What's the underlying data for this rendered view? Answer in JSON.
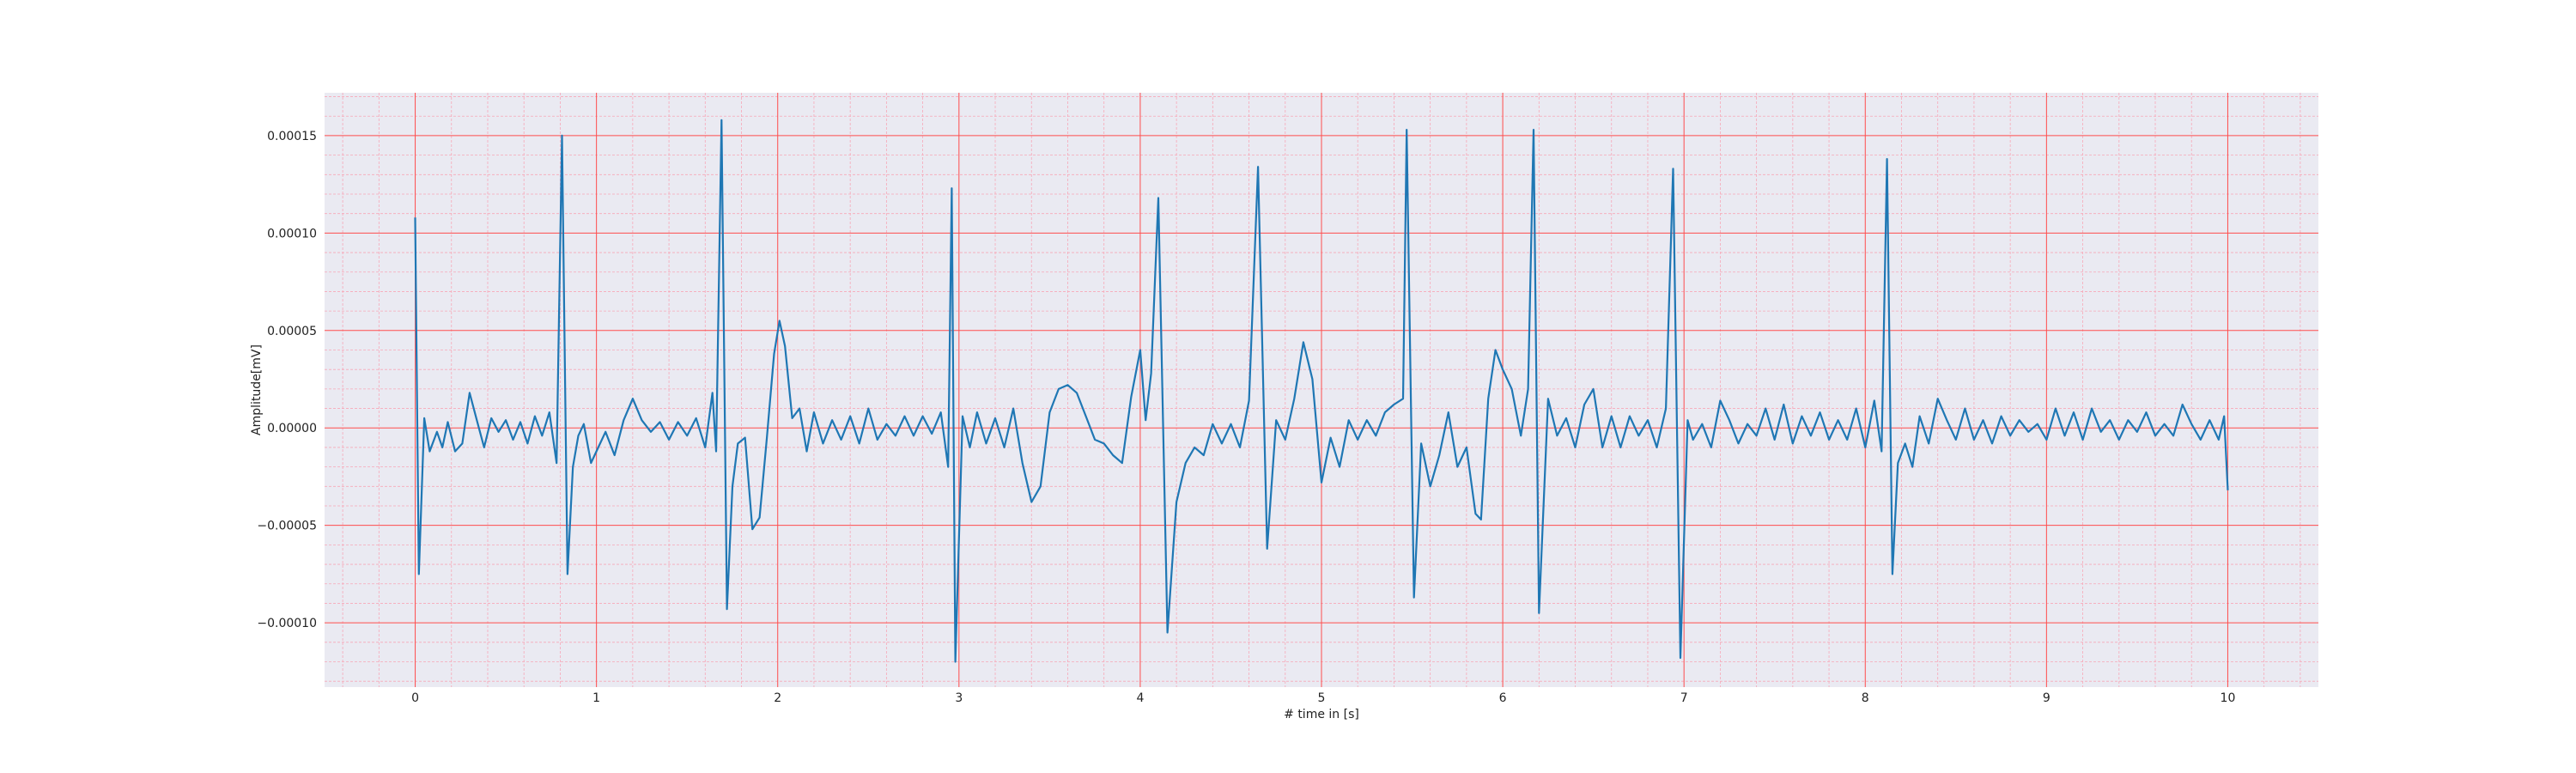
{
  "chart_data": {
    "type": "line",
    "title": "",
    "xlabel": "# time in [s]",
    "ylabel": "Amplitude[mV]",
    "xlim": [
      -0.5,
      10.5
    ],
    "ylim": [
      -0.000133,
      0.000172
    ],
    "x_ticks": [
      0,
      1,
      2,
      3,
      4,
      5,
      6,
      7,
      8,
      9,
      10
    ],
    "x_tick_labels": [
      "0",
      "1",
      "2",
      "3",
      "4",
      "5",
      "6",
      "7",
      "8",
      "9",
      "10"
    ],
    "y_ticks": [
      -0.0001,
      -5e-05,
      0,
      5e-05,
      0.0001,
      0.00015
    ],
    "y_tick_labels": [
      "−0.00010",
      "−0.00005",
      "0.00000",
      "0.00005",
      "0.00010",
      "0.00015"
    ],
    "grid": true,
    "minor_grid": true,
    "colors": {
      "background": "#eaeaf2",
      "major_grid": "#ff4d4d",
      "minor_grid": "#f7a8b8",
      "line": "#1f77b4"
    },
    "series": [
      {
        "points": [
          [
            0.0,
            0.000108
          ],
          [
            0.02,
            -7.5e-05
          ],
          [
            0.05,
            5e-06
          ],
          [
            0.08,
            -1.2e-05
          ],
          [
            0.12,
            -2e-06
          ],
          [
            0.15,
            -1e-05
          ],
          [
            0.18,
            3e-06
          ],
          [
            0.22,
            -1.2e-05
          ],
          [
            0.26,
            -8e-06
          ],
          [
            0.3,
            1.8e-05
          ],
          [
            0.34,
            4e-06
          ],
          [
            0.38,
            -1e-05
          ],
          [
            0.42,
            5e-06
          ],
          [
            0.46,
            -2e-06
          ],
          [
            0.5,
            4e-06
          ],
          [
            0.54,
            -6e-06
          ],
          [
            0.58,
            3e-06
          ],
          [
            0.62,
            -8e-06
          ],
          [
            0.66,
            6e-06
          ],
          [
            0.7,
            -4e-06
          ],
          [
            0.74,
            8e-06
          ],
          [
            0.78,
            -1.8e-05
          ],
          [
            0.81,
            0.00015
          ],
          [
            0.84,
            -7.5e-05
          ],
          [
            0.87,
            -2e-05
          ],
          [
            0.9,
            -4e-06
          ],
          [
            0.93,
            2e-06
          ],
          [
            0.97,
            -1.8e-05
          ],
          [
            1.0,
            -1.2e-05
          ],
          [
            1.05,
            -2e-06
          ],
          [
            1.1,
            -1.4e-05
          ],
          [
            1.15,
            4e-06
          ],
          [
            1.2,
            1.5e-05
          ],
          [
            1.25,
            4e-06
          ],
          [
            1.3,
            -2e-06
          ],
          [
            1.35,
            3e-06
          ],
          [
            1.4,
            -6e-06
          ],
          [
            1.45,
            3e-06
          ],
          [
            1.5,
            -4e-06
          ],
          [
            1.55,
            5e-06
          ],
          [
            1.6,
            -1e-05
          ],
          [
            1.64,
            1.8e-05
          ],
          [
            1.66,
            -1.2e-05
          ],
          [
            1.69,
            0.000158
          ],
          [
            1.72,
            -9.3e-05
          ],
          [
            1.75,
            -3e-05
          ],
          [
            1.78,
            -8e-06
          ],
          [
            1.82,
            -5e-06
          ],
          [
            1.86,
            -5.2e-05
          ],
          [
            1.9,
            -4.6e-05
          ],
          [
            1.94,
            -5e-06
          ],
          [
            1.98,
            3.8e-05
          ],
          [
            2.01,
            5.5e-05
          ],
          [
            2.04,
            4.2e-05
          ],
          [
            2.08,
            5e-06
          ],
          [
            2.12,
            1e-05
          ],
          [
            2.16,
            -1.2e-05
          ],
          [
            2.2,
            8e-06
          ],
          [
            2.25,
            -8e-06
          ],
          [
            2.3,
            4e-06
          ],
          [
            2.35,
            -6e-06
          ],
          [
            2.4,
            6e-06
          ],
          [
            2.45,
            -8e-06
          ],
          [
            2.5,
            1e-05
          ],
          [
            2.55,
            -6e-06
          ],
          [
            2.6,
            2e-06
          ],
          [
            2.65,
            -4e-06
          ],
          [
            2.7,
            6e-06
          ],
          [
            2.75,
            -4e-06
          ],
          [
            2.8,
            6e-06
          ],
          [
            2.85,
            -3e-06
          ],
          [
            2.9,
            8e-06
          ],
          [
            2.94,
            -2e-05
          ],
          [
            2.96,
            0.000123
          ],
          [
            2.98,
            -0.00012
          ],
          [
            3.02,
            6e-06
          ],
          [
            3.06,
            -1e-05
          ],
          [
            3.1,
            8e-06
          ],
          [
            3.15,
            -8e-06
          ],
          [
            3.2,
            5e-06
          ],
          [
            3.25,
            -1e-05
          ],
          [
            3.3,
            1e-05
          ],
          [
            3.35,
            -1.8e-05
          ],
          [
            3.4,
            -3.8e-05
          ],
          [
            3.45,
            -3e-05
          ],
          [
            3.5,
            8e-06
          ],
          [
            3.55,
            2e-05
          ],
          [
            3.6,
            2.2e-05
          ],
          [
            3.65,
            1.8e-05
          ],
          [
            3.7,
            6e-06
          ],
          [
            3.75,
            -6e-06
          ],
          [
            3.8,
            -8e-06
          ],
          [
            3.85,
            -1.4e-05
          ],
          [
            3.9,
            -1.8e-05
          ],
          [
            3.95,
            1.6e-05
          ],
          [
            4.0,
            4e-05
          ],
          [
            4.03,
            4e-06
          ],
          [
            4.06,
            2.8e-05
          ],
          [
            4.1,
            0.000118
          ],
          [
            4.15,
            -0.000105
          ],
          [
            4.2,
            -3.8e-05
          ],
          [
            4.25,
            -1.8e-05
          ],
          [
            4.3,
            -1e-05
          ],
          [
            4.35,
            -1.4e-05
          ],
          [
            4.4,
            2e-06
          ],
          [
            4.45,
            -8e-06
          ],
          [
            4.5,
            2e-06
          ],
          [
            4.55,
            -1e-05
          ],
          [
            4.6,
            1.4e-05
          ],
          [
            4.65,
            0.000134
          ],
          [
            4.7,
            -6.2e-05
          ],
          [
            4.75,
            4e-06
          ],
          [
            4.8,
            -6e-06
          ],
          [
            4.85,
            1.5e-05
          ],
          [
            4.9,
            4.4e-05
          ],
          [
            4.95,
            2.5e-05
          ],
          [
            5.0,
            -2.8e-05
          ],
          [
            5.05,
            -5e-06
          ],
          [
            5.1,
            -2e-05
          ],
          [
            5.15,
            4e-06
          ],
          [
            5.2,
            -6e-06
          ],
          [
            5.25,
            4e-06
          ],
          [
            5.3,
            -4e-06
          ],
          [
            5.35,
            8e-06
          ],
          [
            5.4,
            1.2e-05
          ],
          [
            5.45,
            1.5e-05
          ],
          [
            5.47,
            0.000153
          ],
          [
            5.51,
            -8.7e-05
          ],
          [
            5.55,
            -8e-06
          ],
          [
            5.6,
            -3e-05
          ],
          [
            5.65,
            -1.4e-05
          ],
          [
            5.7,
            8e-06
          ],
          [
            5.75,
            -2e-05
          ],
          [
            5.8,
            -1e-05
          ],
          [
            5.85,
            -4.4e-05
          ],
          [
            5.88,
            -4.7e-05
          ],
          [
            5.92,
            1.5e-05
          ],
          [
            5.96,
            4e-05
          ],
          [
            6.0,
            3e-05
          ],
          [
            6.05,
            2e-05
          ],
          [
            6.1,
            -4e-06
          ],
          [
            6.14,
            2e-05
          ],
          [
            6.17,
            0.000153
          ],
          [
            6.2,
            -9.5e-05
          ],
          [
            6.25,
            1.5e-05
          ],
          [
            6.3,
            -4e-06
          ],
          [
            6.35,
            5e-06
          ],
          [
            6.4,
            -1e-05
          ],
          [
            6.45,
            1.2e-05
          ],
          [
            6.5,
            2e-05
          ],
          [
            6.55,
            -1e-05
          ],
          [
            6.6,
            6e-06
          ],
          [
            6.65,
            -1e-05
          ],
          [
            6.7,
            6e-06
          ],
          [
            6.75,
            -4e-06
          ],
          [
            6.8,
            4e-06
          ],
          [
            6.85,
            -1e-05
          ],
          [
            6.9,
            1e-05
          ],
          [
            6.94,
            0.000133
          ],
          [
            6.98,
            -0.000118
          ],
          [
            7.02,
            4e-06
          ],
          [
            7.05,
            -6e-06
          ],
          [
            7.1,
            2e-06
          ],
          [
            7.15,
            -1e-05
          ],
          [
            7.2,
            1.4e-05
          ],
          [
            7.25,
            4e-06
          ],
          [
            7.3,
            -8e-06
          ],
          [
            7.35,
            2e-06
          ],
          [
            7.4,
            -4e-06
          ],
          [
            7.45,
            1e-05
          ],
          [
            7.5,
            -6e-06
          ],
          [
            7.55,
            1.2e-05
          ],
          [
            7.6,
            -8e-06
          ],
          [
            7.65,
            6e-06
          ],
          [
            7.7,
            -4e-06
          ],
          [
            7.75,
            8e-06
          ],
          [
            7.8,
            -6e-06
          ],
          [
            7.85,
            4e-06
          ],
          [
            7.9,
            -6e-06
          ],
          [
            7.95,
            1e-05
          ],
          [
            8.0,
            -1e-05
          ],
          [
            8.05,
            1.4e-05
          ],
          [
            8.09,
            -1.2e-05
          ],
          [
            8.12,
            0.000138
          ],
          [
            8.15,
            -7.5e-05
          ],
          [
            8.18,
            -1.8e-05
          ],
          [
            8.22,
            -8e-06
          ],
          [
            8.26,
            -2e-05
          ],
          [
            8.3,
            6e-06
          ],
          [
            8.35,
            -8e-06
          ],
          [
            8.4,
            1.5e-05
          ],
          [
            8.45,
            4e-06
          ],
          [
            8.5,
            -6e-06
          ],
          [
            8.55,
            1e-05
          ],
          [
            8.6,
            -6e-06
          ],
          [
            8.65,
            4e-06
          ],
          [
            8.7,
            -8e-06
          ],
          [
            8.75,
            6e-06
          ],
          [
            8.8,
            -4e-06
          ],
          [
            8.85,
            4e-06
          ],
          [
            8.9,
            -2e-06
          ],
          [
            8.95,
            2e-06
          ],
          [
            9.0,
            -6e-06
          ],
          [
            9.05,
            1e-05
          ],
          [
            9.1,
            -4e-06
          ],
          [
            9.15,
            8e-06
          ],
          [
            9.2,
            -6e-06
          ],
          [
            9.25,
            1e-05
          ],
          [
            9.3,
            -2e-06
          ],
          [
            9.35,
            4e-06
          ],
          [
            9.4,
            -6e-06
          ],
          [
            9.45,
            4e-06
          ],
          [
            9.5,
            -2e-06
          ],
          [
            9.55,
            8e-06
          ],
          [
            9.6,
            -4e-06
          ],
          [
            9.65,
            2e-06
          ],
          [
            9.7,
            -4e-06
          ],
          [
            9.75,
            1.2e-05
          ],
          [
            9.8,
            2e-06
          ],
          [
            9.85,
            -6e-06
          ],
          [
            9.9,
            4e-06
          ],
          [
            9.95,
            -6e-06
          ],
          [
            9.98,
            6e-06
          ],
          [
            10.0,
            -3.2e-05
          ]
        ]
      }
    ]
  }
}
